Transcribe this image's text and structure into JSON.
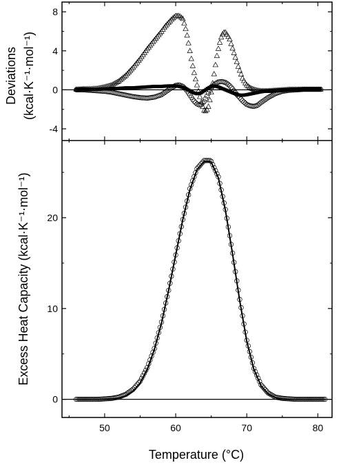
{
  "chart_data": [
    {
      "panel": "top",
      "type": "scatter",
      "title": "",
      "ylabel": "Deviations",
      "ylabel_unit": "(kcal·K⁻¹·mol⁻¹)",
      "xlim": [
        44,
        82
      ],
      "ylim": [
        -5.2,
        9
      ],
      "yticks": [
        -4,
        0,
        4,
        8
      ],
      "ytick_labels": [
        "-4",
        "0",
        "4",
        "8"
      ],
      "zero_line": true,
      "grid": false,
      "series": [
        {
          "marker": "triangle",
          "x": [
            46,
            47,
            48,
            49,
            50,
            51,
            52,
            53,
            54,
            55,
            56,
            57,
            58,
            58.5,
            59,
            59.5,
            60,
            60.5,
            61,
            61.3,
            61.6,
            61.9,
            62.2,
            62.5,
            62.8,
            63.1,
            63.4,
            63.7,
            64,
            64.3,
            64.6,
            64.9,
            65.2,
            65.5,
            65.8,
            66.1,
            66.4,
            66.7,
            67,
            67.3,
            67.6,
            67.9,
            68.2,
            68.5,
            68.8,
            69.1,
            69.4,
            69.7,
            70,
            70.5,
            71,
            71.5,
            72,
            73,
            74,
            75,
            76,
            77,
            78,
            79,
            80.5
          ],
          "y": [
            0.05,
            0.1,
            0.1,
            0.15,
            0.3,
            0.5,
            0.9,
            1.5,
            2.3,
            3.2,
            4.2,
            5.1,
            6.0,
            6.5,
            6.9,
            7.3,
            7.6,
            7.6,
            7.3,
            6.6,
            5.6,
            4.4,
            3.2,
            2.1,
            1.1,
            0.2,
            -0.7,
            -1.5,
            -2.1,
            -2.2,
            -1.7,
            -0.7,
            0.7,
            2.1,
            3.5,
            4.6,
            5.4,
            5.9,
            5.9,
            5.6,
            5.2,
            4.5,
            3.8,
            3.1,
            2.4,
            1.8,
            1.2,
            0.8,
            0.5,
            0.2,
            0.05,
            -0.05,
            -0.1,
            -0.1,
            -0.05,
            0,
            0.05,
            0.05,
            0.05,
            0.05,
            0.05
          ]
        },
        {
          "marker": "circle",
          "x": [
            46,
            47,
            48,
            49,
            50,
            51,
            52,
            53,
            54,
            55,
            56,
            57,
            58,
            59,
            59.5,
            60,
            60.5,
            61,
            61.5,
            62,
            62.5,
            63,
            63.5,
            64,
            64.5,
            65,
            65.5,
            66,
            66.5,
            67,
            67.5,
            68,
            68.5,
            69,
            69.5,
            70,
            70.5,
            71,
            71.5,
            72,
            73,
            74,
            75,
            76,
            77,
            78,
            79,
            80.5
          ],
          "y": [
            0,
            0,
            -0.05,
            -0.1,
            -0.15,
            -0.25,
            -0.4,
            -0.55,
            -0.7,
            -0.8,
            -0.85,
            -0.75,
            -0.5,
            0,
            0.25,
            0.45,
            0.5,
            0.35,
            0,
            -0.55,
            -1.1,
            -1.45,
            -1.6,
            -1.2,
            -0.5,
            0.2,
            0.6,
            0.8,
            0.85,
            0.75,
            0.5,
            0.1,
            -0.4,
            -0.8,
            -1.2,
            -1.5,
            -1.65,
            -1.7,
            -1.6,
            -1.3,
            -0.8,
            -0.4,
            -0.15,
            -0.05,
            0,
            0.05,
            0.05,
            0.05
          ]
        },
        {
          "marker": "filled-square",
          "x": [
            46,
            47,
            48,
            49,
            50,
            51,
            52,
            53,
            54,
            55,
            56,
            57,
            58,
            59,
            60,
            60.5,
            61,
            61.5,
            62,
            62.5,
            63,
            63.5,
            64,
            64.5,
            65,
            65.5,
            66,
            66.5,
            67,
            67.5,
            68,
            68.5,
            69,
            69.5,
            70,
            71,
            72,
            73,
            74,
            75,
            76,
            77,
            78,
            79,
            80.5
          ],
          "y": [
            0.05,
            0.05,
            0.05,
            0.05,
            0.1,
            0.1,
            0.15,
            0.2,
            0.2,
            0.25,
            0.3,
            0.35,
            0.35,
            0.4,
            0.4,
            0.35,
            0.25,
            0.1,
            -0.1,
            -0.3,
            -0.4,
            -0.35,
            -0.1,
            0.15,
            0.35,
            0.4,
            0.3,
            0.15,
            0,
            -0.15,
            -0.3,
            -0.45,
            -0.55,
            -0.55,
            -0.5,
            -0.35,
            -0.2,
            -0.1,
            -0.05,
            0,
            0,
            0,
            0.05,
            0.05,
            0.05
          ]
        }
      ]
    },
    {
      "panel": "bottom",
      "type": "scatter",
      "title": "",
      "xlabel": "Temperature (°C)",
      "ylabel": "Excess Heat Capacity (kcal·K⁻¹·mol⁻¹)",
      "xlim": [
        44,
        82
      ],
      "ylim": [
        -2,
        28.5
      ],
      "xticks": [
        50,
        60,
        70,
        80
      ],
      "xtick_labels": [
        "50",
        "60",
        "70",
        "80"
      ],
      "yticks": [
        0,
        10,
        20
      ],
      "ytick_labels": [
        "0",
        "10",
        "20"
      ],
      "zero_line": true,
      "grid": false,
      "peak": {
        "x": 64.8,
        "y": 26.3
      },
      "series": [
        {
          "marker": "circle",
          "x": [
            46,
            47,
            48,
            49,
            50,
            51,
            52,
            53,
            54,
            55,
            56,
            57,
            58,
            59,
            60,
            61,
            62,
            63,
            64,
            64.8,
            65,
            66,
            67,
            68,
            69,
            70,
            71,
            72,
            73,
            74,
            75,
            76,
            77,
            78,
            79,
            80,
            81
          ],
          "y": [
            0,
            0,
            0,
            0,
            0.05,
            0.1,
            0.25,
            0.55,
            1.1,
            2.0,
            3.5,
            5.6,
            8.5,
            12.0,
            15.9,
            19.8,
            23.2,
            25.4,
            26.3,
            26.3,
            26.2,
            24.5,
            20.9,
            16.1,
            11.0,
            6.5,
            3.4,
            1.6,
            0.7,
            0.25,
            0.1,
            0.05,
            0,
            0,
            0,
            0,
            0
          ]
        },
        {
          "marker": "line",
          "x": [
            46,
            47,
            48,
            49,
            50,
            51,
            52,
            53,
            54,
            55,
            56,
            57,
            58,
            59,
            60,
            61,
            62,
            63,
            64,
            64.8,
            65,
            66,
            67,
            68,
            69,
            70,
            71,
            72,
            73,
            74,
            75,
            76,
            77,
            78,
            79,
            80,
            81
          ],
          "y": [
            0,
            0,
            0,
            0,
            0.02,
            0.05,
            0.15,
            0.4,
            0.9,
            1.8,
            3.3,
            5.5,
            8.4,
            12.0,
            15.9,
            19.8,
            23.1,
            25.3,
            26.2,
            26.2,
            26.1,
            24.4,
            20.8,
            16.0,
            10.9,
            6.4,
            3.3,
            1.5,
            0.6,
            0.2,
            0.05,
            0,
            0,
            0,
            0,
            0,
            0
          ]
        }
      ]
    }
  ]
}
